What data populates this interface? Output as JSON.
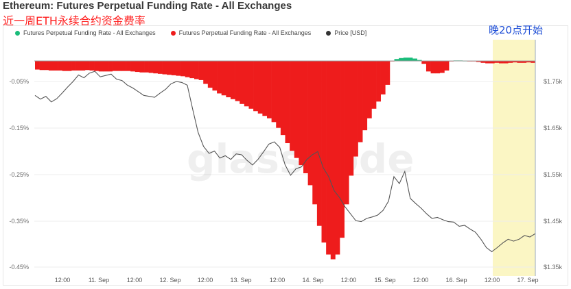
{
  "title": "Ethereum: Futures Perpetual Funding Rate - All Exchanges",
  "subtitle": "近一周ETH永续合约资金费率",
  "callout": "晚20点开始",
  "watermark": "glassnode",
  "legend": [
    {
      "label": "Futures Perpetual Funding Rate - All Exchanges",
      "color": "#1abc7a"
    },
    {
      "label": "Futures Perpetual Funding Rate - All Exchanges",
      "color": "#ee1c1c"
    },
    {
      "label": "Price [USD]",
      "color": "#333333"
    }
  ],
  "colors": {
    "positive": "#1abc7a",
    "negative": "#ee1c1c",
    "price": "#555555",
    "highlight": "#fbf6c4"
  },
  "chart_data": {
    "type": "bar",
    "title": "Ethereum: Futures Perpetual Funding Rate - All Exchanges",
    "x_tick_labels": [
      "12:00",
      "11. Sep",
      "12:00",
      "12. Sep",
      "12:00",
      "13. Sep",
      "12:00",
      "14. Sep",
      "12:00",
      "15. Sep",
      "12:00",
      "16. Sep",
      "12:00",
      "17. Sep"
    ],
    "left_axis": {
      "ticks": [
        "-0.05%",
        "-0.15%",
        "-0.25%",
        "-0.35%",
        "-0.45%"
      ],
      "ylim": [
        -0.45,
        0
      ]
    },
    "right_axis": {
      "ticks": [
        "$1.75k",
        "$1.65k",
        "$1.55k",
        "$1.45k",
        "$1.35k"
      ],
      "ylim": [
        1350,
        1800
      ]
    },
    "grid": true,
    "legend_position": "top-left",
    "series": [
      {
        "name": "Futures Perpetual Funding Rate - All Exchanges",
        "kind": "funding",
        "values": [
          -0.018,
          -0.019,
          -0.019,
          -0.02,
          -0.02,
          -0.02,
          -0.021,
          -0.021,
          -0.02,
          -0.02,
          -0.02,
          -0.019,
          -0.02,
          -0.021,
          -0.022,
          -0.022,
          -0.022,
          -0.021,
          -0.021,
          -0.021,
          -0.021,
          -0.022,
          -0.023,
          -0.024,
          -0.024,
          -0.025,
          -0.026,
          -0.027,
          -0.028,
          -0.029,
          -0.03,
          -0.031,
          -0.032,
          -0.034,
          -0.036,
          -0.038,
          -0.04,
          -0.048,
          -0.056,
          -0.062,
          -0.068,
          -0.072,
          -0.076,
          -0.08,
          -0.084,
          -0.09,
          -0.095,
          -0.1,
          -0.105,
          -0.11,
          -0.115,
          -0.12,
          -0.128,
          -0.14,
          -0.155,
          -0.172,
          -0.188,
          -0.203,
          -0.218,
          -0.235,
          -0.26,
          -0.3,
          -0.345,
          -0.38,
          -0.405,
          -0.415,
          -0.405,
          -0.37,
          -0.3,
          -0.24,
          -0.2,
          -0.17,
          -0.145,
          -0.12,
          -0.1,
          -0.085,
          -0.07,
          -0.05,
          -0.001,
          0.004,
          0.006,
          0.007,
          0.007,
          0.005,
          0.002,
          -0.006,
          -0.022,
          -0.026,
          -0.026,
          -0.025,
          -0.02,
          -0.001,
          0.001,
          0.001,
          0.0,
          -0.001,
          -0.001,
          -0.002,
          -0.004,
          -0.005,
          -0.005,
          -0.004,
          -0.005,
          -0.005,
          -0.004,
          -0.003,
          -0.004,
          -0.004,
          -0.003,
          -0.004
        ]
      },
      {
        "name": "Price [USD]",
        "kind": "price",
        "values": [
          1720,
          1712,
          1718,
          1706,
          1713,
          1725,
          1738,
          1750,
          1764,
          1758,
          1768,
          1772,
          1760,
          1763,
          1766,
          1755,
          1752,
          1742,
          1736,
          1728,
          1720,
          1718,
          1716,
          1725,
          1733,
          1745,
          1750,
          1748,
          1742,
          1690,
          1640,
          1610,
          1595,
          1600,
          1585,
          1590,
          1582,
          1594,
          1592,
          1580,
          1570,
          1582,
          1598,
          1615,
          1620,
          1608,
          1570,
          1548,
          1562,
          1566,
          1582,
          1592,
          1599,
          1564,
          1545,
          1515,
          1500,
          1480,
          1465,
          1450,
          1448,
          1455,
          1458,
          1462,
          1472,
          1492,
          1545,
          1530,
          1556,
          1498,
          1487,
          1477,
          1465,
          1455,
          1457,
          1452,
          1448,
          1447,
          1438,
          1440,
          1432,
          1425,
          1410,
          1392,
          1383,
          1392,
          1402,
          1410,
          1406,
          1410,
          1418,
          1415,
          1422
        ]
      }
    ]
  }
}
